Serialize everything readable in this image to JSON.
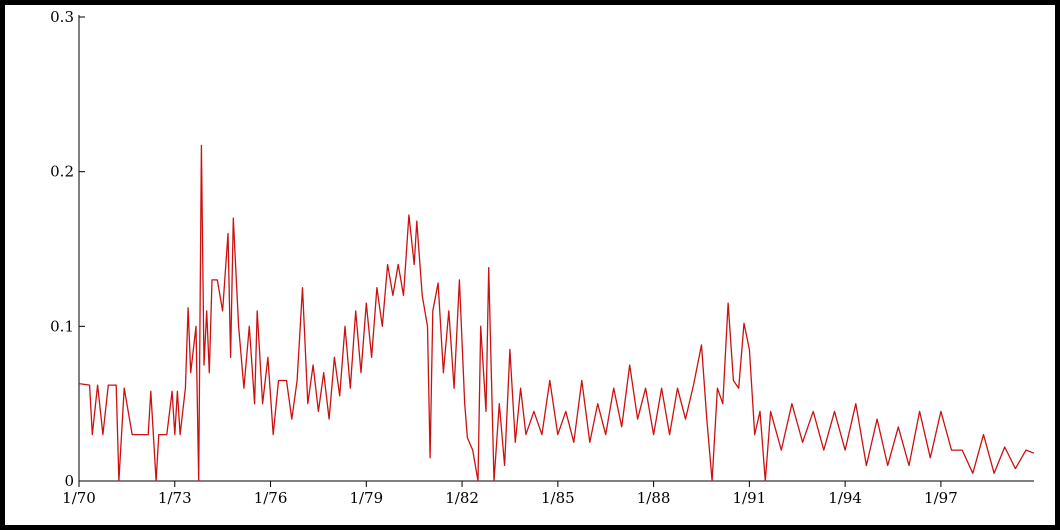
{
  "chart_data": {
    "type": "line",
    "title": "",
    "xlabel": "",
    "ylabel": "",
    "x_range": [
      "1970-01",
      "1999-12"
    ],
    "ylim": [
      0,
      0.3
    ],
    "grid": false,
    "legend": "none",
    "x_tick_labels": [
      "1/70",
      "1/73",
      "1/76",
      "1/79",
      "1/82",
      "1/85",
      "1/88",
      "1/91",
      "1/94",
      "1/97"
    ],
    "y_tick_labels": [
      "0",
      "0.1",
      "0.2",
      "0.3"
    ],
    "x_ticks": [
      "1970-01",
      "1973-01",
      "1976-01",
      "1979-01",
      "1982-01",
      "1985-01",
      "1988-01",
      "1991-01",
      "1994-01",
      "1997-01"
    ],
    "y_ticks": [
      0,
      0.1,
      0.2,
      0.3
    ],
    "series": [
      {
        "color": "#cc1111",
        "points": [
          [
            "1970-01",
            0.063
          ],
          [
            "1970-05",
            0.062
          ],
          [
            "1970-06",
            0.03
          ],
          [
            "1970-08",
            0.062
          ],
          [
            "1970-10",
            0.03
          ],
          [
            "1970-12",
            0.062
          ],
          [
            "1971-03",
            0.062
          ],
          [
            "1971-04",
            0.0
          ],
          [
            "1971-06",
            0.06
          ],
          [
            "1971-09",
            0.03
          ],
          [
            "1971-12",
            0.03
          ],
          [
            "1972-03",
            0.03
          ],
          [
            "1972-04",
            0.058
          ],
          [
            "1972-06",
            0.0
          ],
          [
            "1972-07",
            0.03
          ],
          [
            "1972-10",
            0.03
          ],
          [
            "1972-12",
            0.058
          ],
          [
            "1973-01",
            0.03
          ],
          [
            "1973-02",
            0.058
          ],
          [
            "1973-03",
            0.03
          ],
          [
            "1973-05",
            0.06
          ],
          [
            "1973-06",
            0.112
          ],
          [
            "1973-07",
            0.07
          ],
          [
            "1973-09",
            0.1
          ],
          [
            "1973-10",
            0.0
          ],
          [
            "1973-11",
            0.217
          ],
          [
            "1973-12",
            0.075
          ],
          [
            "1974-01",
            0.11
          ],
          [
            "1974-02",
            0.07
          ],
          [
            "1974-03",
            0.13
          ],
          [
            "1974-05",
            0.13
          ],
          [
            "1974-07",
            0.11
          ],
          [
            "1974-09",
            0.16
          ],
          [
            "1974-10",
            0.08
          ],
          [
            "1974-11",
            0.17
          ],
          [
            "1975-01",
            0.1
          ],
          [
            "1975-03",
            0.06
          ],
          [
            "1975-05",
            0.1
          ],
          [
            "1975-07",
            0.05
          ],
          [
            "1975-08",
            0.11
          ],
          [
            "1975-10",
            0.05
          ],
          [
            "1975-12",
            0.08
          ],
          [
            "1976-02",
            0.03
          ],
          [
            "1976-04",
            0.065
          ],
          [
            "1976-07",
            0.065
          ],
          [
            "1976-09",
            0.04
          ],
          [
            "1976-11",
            0.065
          ],
          [
            "1977-01",
            0.125
          ],
          [
            "1977-03",
            0.05
          ],
          [
            "1977-05",
            0.075
          ],
          [
            "1977-07",
            0.045
          ],
          [
            "1977-09",
            0.07
          ],
          [
            "1977-11",
            0.04
          ],
          [
            "1978-01",
            0.08
          ],
          [
            "1978-03",
            0.055
          ],
          [
            "1978-05",
            0.1
          ],
          [
            "1978-07",
            0.06
          ],
          [
            "1978-09",
            0.11
          ],
          [
            "1978-11",
            0.07
          ],
          [
            "1979-01",
            0.115
          ],
          [
            "1979-03",
            0.08
          ],
          [
            "1979-05",
            0.125
          ],
          [
            "1979-07",
            0.1
          ],
          [
            "1979-09",
            0.14
          ],
          [
            "1979-11",
            0.12
          ],
          [
            "1980-01",
            0.14
          ],
          [
            "1980-03",
            0.12
          ],
          [
            "1980-05",
            0.172
          ],
          [
            "1980-07",
            0.14
          ],
          [
            "1980-08",
            0.168
          ],
          [
            "1980-10",
            0.12
          ],
          [
            "1980-12",
            0.1
          ],
          [
            "1981-01",
            0.015
          ],
          [
            "1981-02",
            0.11
          ],
          [
            "1981-04",
            0.128
          ],
          [
            "1981-06",
            0.07
          ],
          [
            "1981-08",
            0.11
          ],
          [
            "1981-10",
            0.06
          ],
          [
            "1981-12",
            0.13
          ],
          [
            "1982-02",
            0.05
          ],
          [
            "1982-03",
            0.028
          ],
          [
            "1982-05",
            0.02
          ],
          [
            "1982-07",
            0.0
          ],
          [
            "1982-08",
            0.1
          ],
          [
            "1982-10",
            0.045
          ],
          [
            "1982-11",
            0.138
          ],
          [
            "1983-01",
            0.0
          ],
          [
            "1983-03",
            0.05
          ],
          [
            "1983-05",
            0.01
          ],
          [
            "1983-07",
            0.085
          ],
          [
            "1983-09",
            0.025
          ],
          [
            "1983-11",
            0.06
          ],
          [
            "1984-01",
            0.03
          ],
          [
            "1984-04",
            0.045
          ],
          [
            "1984-07",
            0.03
          ],
          [
            "1984-10",
            0.065
          ],
          [
            "1985-01",
            0.03
          ],
          [
            "1985-04",
            0.045
          ],
          [
            "1985-07",
            0.025
          ],
          [
            "1985-10",
            0.065
          ],
          [
            "1986-01",
            0.025
          ],
          [
            "1986-04",
            0.05
          ],
          [
            "1986-07",
            0.03
          ],
          [
            "1986-10",
            0.06
          ],
          [
            "1987-01",
            0.035
          ],
          [
            "1987-04",
            0.075
          ],
          [
            "1987-07",
            0.04
          ],
          [
            "1987-10",
            0.06
          ],
          [
            "1988-01",
            0.03
          ],
          [
            "1988-04",
            0.06
          ],
          [
            "1988-07",
            0.03
          ],
          [
            "1988-10",
            0.06
          ],
          [
            "1989-01",
            0.04
          ],
          [
            "1989-04",
            0.062
          ],
          [
            "1989-07",
            0.088
          ],
          [
            "1989-09",
            0.04
          ],
          [
            "1989-11",
            0.0
          ],
          [
            "1990-01",
            0.06
          ],
          [
            "1990-03",
            0.05
          ],
          [
            "1990-05",
            0.115
          ],
          [
            "1990-07",
            0.065
          ],
          [
            "1990-09",
            0.06
          ],
          [
            "1990-11",
            0.102
          ],
          [
            "1991-01",
            0.085
          ],
          [
            "1991-03",
            0.03
          ],
          [
            "1991-05",
            0.045
          ],
          [
            "1991-07",
            0.0
          ],
          [
            "1991-09",
            0.045
          ],
          [
            "1992-01",
            0.02
          ],
          [
            "1992-05",
            0.05
          ],
          [
            "1992-09",
            0.025
          ],
          [
            "1993-01",
            0.045
          ],
          [
            "1993-05",
            0.02
          ],
          [
            "1993-09",
            0.045
          ],
          [
            "1994-01",
            0.02
          ],
          [
            "1994-05",
            0.05
          ],
          [
            "1994-09",
            0.01
          ],
          [
            "1995-01",
            0.04
          ],
          [
            "1995-05",
            0.01
          ],
          [
            "1995-09",
            0.035
          ],
          [
            "1996-01",
            0.01
          ],
          [
            "1996-05",
            0.045
          ],
          [
            "1996-09",
            0.015
          ],
          [
            "1997-01",
            0.045
          ],
          [
            "1997-05",
            0.02
          ],
          [
            "1997-09",
            0.02
          ],
          [
            "1998-01",
            0.005
          ],
          [
            "1998-05",
            0.03
          ],
          [
            "1998-09",
            0.005
          ],
          [
            "1999-01",
            0.022
          ],
          [
            "1999-05",
            0.008
          ],
          [
            "1999-09",
            0.02
          ],
          [
            "1999-12",
            0.018
          ]
        ]
      }
    ]
  }
}
